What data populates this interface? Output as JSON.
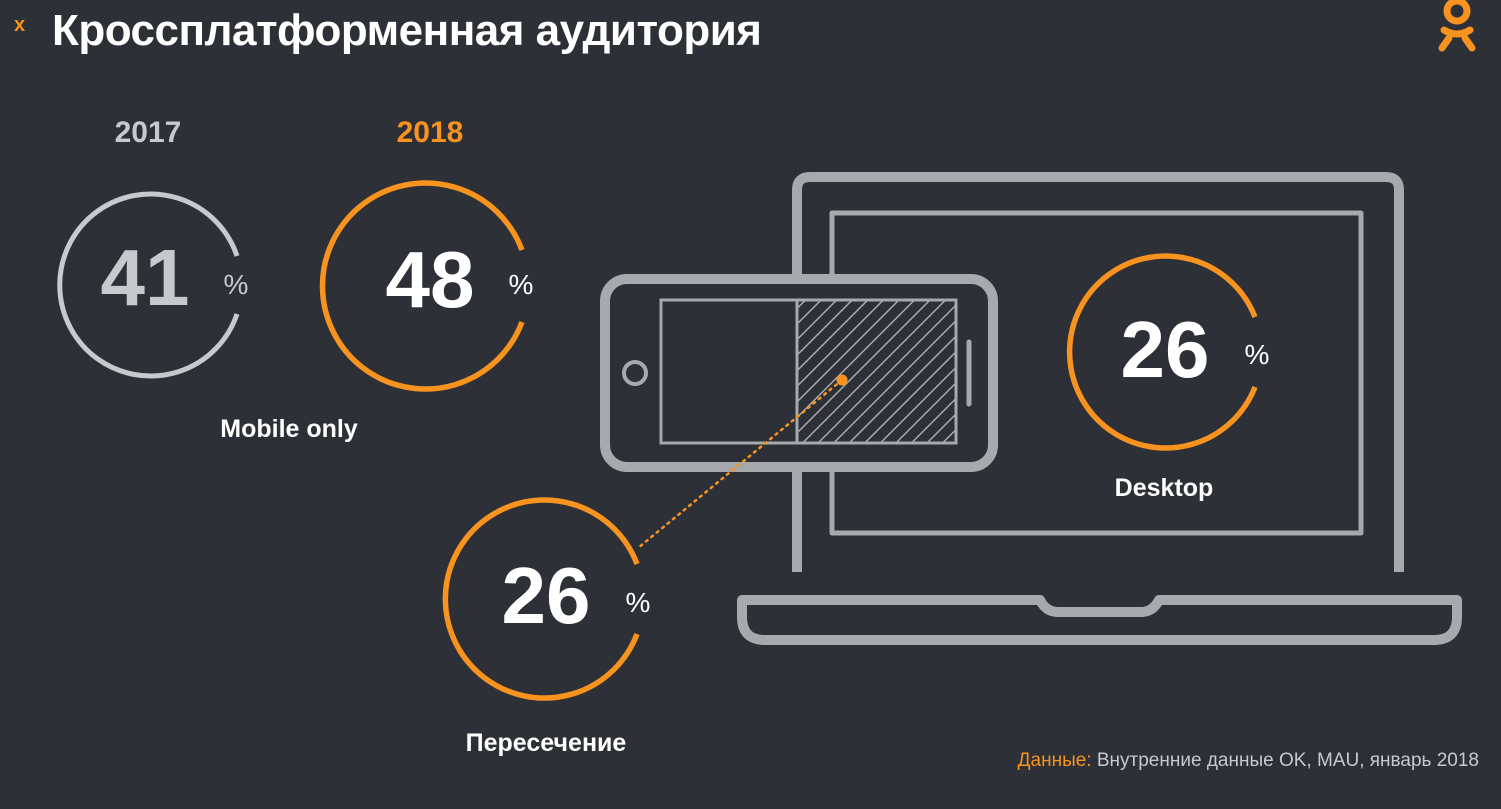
{
  "header": {
    "x_mark": "x",
    "title": "Кроссплатформенная аудитория"
  },
  "mobile_only": {
    "label": "Mobile only",
    "year_2017": {
      "year": "2017",
      "value": "41",
      "unit": "%"
    },
    "year_2018": {
      "year": "2018",
      "value": "48",
      "unit": "%"
    }
  },
  "desktop": {
    "label": "Desktop",
    "value": "26",
    "unit": "%"
  },
  "overlap": {
    "label": "Пересечение",
    "value": "26",
    "unit": "%"
  },
  "source": {
    "label": "Данные:",
    "text": " Внутренние данные OK, MAU, январь 2018"
  },
  "colors": {
    "accent": "#f7931e",
    "grey": "#c8c9cc",
    "device_outline": "#a7a9ad",
    "background": "#2e3038"
  },
  "icons": [
    "ok-logo-icon",
    "laptop-icon",
    "phone-icon"
  ]
}
